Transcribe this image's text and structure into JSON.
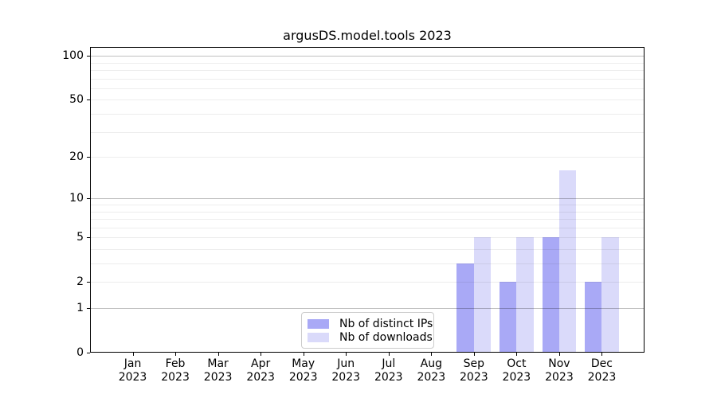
{
  "title": "argusDS.model.tools 2023",
  "chart_data": {
    "type": "bar",
    "title": "argusDS.model.tools 2023",
    "categories": [
      "Jan 2023",
      "Feb 2023",
      "Mar 2023",
      "Apr 2023",
      "May 2023",
      "Jun 2023",
      "Jul 2023",
      "Aug 2023",
      "Sep 2023",
      "Oct 2023",
      "Nov 2023",
      "Dec 2023"
    ],
    "month_labels": [
      "Jan",
      "Feb",
      "Mar",
      "Apr",
      "May",
      "Jun",
      "Jul",
      "Aug",
      "Sep",
      "Oct",
      "Nov",
      "Dec"
    ],
    "year_label": "2023",
    "series": [
      {
        "name": "Nb of distinct IPs",
        "color": "#a9a9f6",
        "values": [
          0,
          0,
          0,
          0,
          0,
          0,
          0,
          0,
          3,
          2,
          5,
          2
        ]
      },
      {
        "name": "Nb of downloads",
        "color": "#dadafa",
        "values": [
          0,
          0,
          0,
          0,
          0,
          0,
          0,
          0,
          5,
          5,
          16,
          5
        ]
      }
    ],
    "xlabel": "",
    "ylabel": "",
    "yscale": "log1p",
    "ylim": [
      0,
      115
    ],
    "y_ticks": [
      0,
      1,
      2,
      5,
      10,
      20,
      50,
      100
    ],
    "y_major_gridlines": [
      1,
      10,
      100
    ],
    "y_minor_gridlines": [
      2,
      3,
      4,
      5,
      6,
      7,
      8,
      9,
      20,
      30,
      40,
      50,
      60,
      70,
      80,
      90
    ],
    "grid": "horizontal",
    "legend_position": "lower center",
    "bar_width_frac": 0.4
  },
  "legend": {
    "items": [
      {
        "label": "Nb of distinct IPs",
        "color": "#a9a9f6"
      },
      {
        "label": "Nb of downloads",
        "color": "#dadafa"
      }
    ]
  }
}
